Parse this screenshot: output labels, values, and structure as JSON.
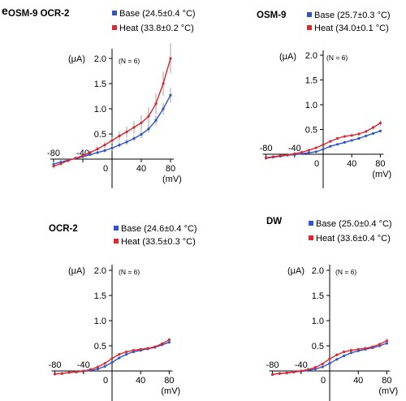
{
  "panel_letter": "e",
  "colors": {
    "base": "#2f55c8",
    "heat": "#d9282f",
    "error": "#8a8a8a"
  },
  "chart_data": [
    {
      "type": "line",
      "title": "OSM-9 OCR-2",
      "ylabel": "(μA)",
      "xlabel": "(mV)",
      "n_label": "(N = 6)",
      "xlim": [
        -80,
        80
      ],
      "ylim": [
        -0.15,
        2.0
      ],
      "x_ticks": [
        -80,
        -40,
        0,
        40,
        80
      ],
      "y_ticks": [
        0.5,
        1.0,
        1.5,
        2.0
      ],
      "y_tick_labels": [
        "0.5",
        "1.0",
        "1.5",
        "2.0"
      ],
      "x_tick_labels": [
        "-80",
        "-40",
        "0",
        "40",
        "80"
      ],
      "x": [
        -80,
        -70,
        -60,
        -50,
        -40,
        -30,
        -20,
        -10,
        0,
        10,
        20,
        30,
        40,
        50,
        60,
        70,
        80
      ],
      "series": [
        {
          "name": "Base (24.5±0.4 °C)",
          "color": "base",
          "values": [
            -0.1,
            -0.06,
            -0.02,
            0.01,
            0.05,
            0.09,
            0.13,
            0.17,
            0.22,
            0.28,
            0.34,
            0.41,
            0.49,
            0.6,
            0.77,
            1.0,
            1.27
          ],
          "errors": [
            0.04,
            0.04,
            0.03,
            0.03,
            0.03,
            0.03,
            0.03,
            0.04,
            0.05,
            0.05,
            0.06,
            0.06,
            0.07,
            0.08,
            0.1,
            0.12,
            0.15
          ]
        },
        {
          "name": "Heat (33.8±0.2 °C)",
          "color": "heat",
          "values": [
            -0.14,
            -0.09,
            -0.03,
            0.02,
            0.07,
            0.13,
            0.2,
            0.28,
            0.37,
            0.46,
            0.54,
            0.63,
            0.72,
            0.85,
            1.1,
            1.5,
            2.0
          ],
          "errors": [
            0.05,
            0.04,
            0.04,
            0.03,
            0.03,
            0.04,
            0.05,
            0.06,
            0.07,
            0.09,
            0.11,
            0.13,
            0.15,
            0.18,
            0.2,
            0.24,
            0.3
          ]
        }
      ]
    },
    {
      "type": "line",
      "title": "OSM-9",
      "ylabel": "(μA)",
      "xlabel": "(mV)",
      "n_label": "(N = 6)",
      "xlim": [
        -80,
        80
      ],
      "ylim": [
        -0.15,
        2.0
      ],
      "x_ticks": [
        -80,
        -40,
        0,
        40,
        80
      ],
      "y_ticks": [
        0.5,
        1.0,
        1.5,
        2.0
      ],
      "y_tick_labels": [
        "0.5",
        "1.0",
        "1.5",
        "2.0"
      ],
      "x_tick_labels": [
        "-80",
        "-40",
        "0",
        "40",
        "80"
      ],
      "x": [
        -80,
        -70,
        -60,
        -50,
        -40,
        -30,
        -20,
        -10,
        0,
        10,
        20,
        30,
        40,
        50,
        60,
        70,
        80
      ],
      "series": [
        {
          "name": "Base (25.7±0.3 °C)",
          "color": "base",
          "values": [
            -0.08,
            -0.06,
            -0.04,
            -0.02,
            -0.01,
            0.01,
            0.03,
            0.05,
            0.1,
            0.16,
            0.2,
            0.24,
            0.28,
            0.32,
            0.37,
            0.42,
            0.47
          ],
          "errors": [
            0.02,
            0.02,
            0.02,
            0.02,
            0.02,
            0.02,
            0.02,
            0.02,
            0.02,
            0.02,
            0.02,
            0.02,
            0.02,
            0.03,
            0.03,
            0.03,
            0.03
          ]
        },
        {
          "name": "Heat (34.0±0.1 °C)",
          "color": "heat",
          "values": [
            -0.07,
            -0.05,
            -0.03,
            -0.01,
            0.01,
            0.04,
            0.08,
            0.13,
            0.19,
            0.26,
            0.32,
            0.36,
            0.38,
            0.41,
            0.46,
            0.54,
            0.63
          ],
          "errors": [
            0.02,
            0.02,
            0.02,
            0.02,
            0.02,
            0.02,
            0.02,
            0.02,
            0.02,
            0.02,
            0.02,
            0.02,
            0.02,
            0.03,
            0.03,
            0.04,
            0.05
          ]
        }
      ]
    },
    {
      "type": "line",
      "title": "OCR-2",
      "ylabel": "(μA)",
      "xlabel": "(mV)",
      "n_label": "(N = 6)",
      "xlim": [
        -80,
        80
      ],
      "ylim": [
        -0.15,
        2.0
      ],
      "x_ticks": [
        -80,
        -40,
        0,
        40,
        80
      ],
      "y_ticks": [
        0.5,
        1.0,
        1.5,
        2.0
      ],
      "y_tick_labels": [
        "0.5",
        "1.0",
        "1.5",
        "2.0"
      ],
      "x_tick_labels": [
        "-80",
        "-40",
        "0",
        "40",
        "80"
      ],
      "x": [
        -80,
        -70,
        -60,
        -50,
        -40,
        -30,
        -20,
        -10,
        0,
        10,
        20,
        30,
        40,
        50,
        60,
        70,
        80
      ],
      "series": [
        {
          "name": "Base (24.6±0.4 °C)",
          "color": "base",
          "values": [
            -0.06,
            -0.05,
            -0.03,
            -0.02,
            -0.01,
            0.01,
            0.04,
            0.09,
            0.17,
            0.26,
            0.33,
            0.38,
            0.41,
            0.44,
            0.47,
            0.52,
            0.57
          ],
          "errors": [
            0.02,
            0.02,
            0.02,
            0.02,
            0.02,
            0.02,
            0.02,
            0.02,
            0.02,
            0.02,
            0.02,
            0.02,
            0.02,
            0.02,
            0.02,
            0.03,
            0.03
          ]
        },
        {
          "name": "Heat (33.5±0.3 °C)",
          "color": "heat",
          "values": [
            -0.06,
            -0.05,
            -0.03,
            -0.02,
            0.0,
            0.03,
            0.08,
            0.15,
            0.25,
            0.33,
            0.38,
            0.41,
            0.43,
            0.45,
            0.48,
            0.54,
            0.62
          ],
          "errors": [
            0.02,
            0.02,
            0.02,
            0.02,
            0.02,
            0.02,
            0.02,
            0.02,
            0.03,
            0.03,
            0.03,
            0.03,
            0.02,
            0.02,
            0.03,
            0.03,
            0.04
          ]
        }
      ]
    },
    {
      "type": "line",
      "title": "DW",
      "ylabel": "(μA)",
      "xlabel": "(mV)",
      "n_label": "(N = 6)",
      "xlim": [
        -80,
        80
      ],
      "ylim": [
        -0.15,
        2.0
      ],
      "x_ticks": [
        -80,
        -40,
        0,
        40,
        80
      ],
      "y_ticks": [
        0.5,
        1.0,
        1.5,
        2.0
      ],
      "y_tick_labels": [
        "0.5",
        "1.0",
        "1.5",
        "2.0"
      ],
      "x_tick_labels": [
        "-80",
        "-40",
        "0",
        "40",
        "80"
      ],
      "x": [
        -80,
        -70,
        -60,
        -50,
        -40,
        -30,
        -20,
        -10,
        0,
        10,
        20,
        30,
        40,
        50,
        60,
        70,
        80
      ],
      "series": [
        {
          "name": "Base (25.0±0.4 °C)",
          "color": "base",
          "values": [
            -0.07,
            -0.05,
            -0.04,
            -0.02,
            -0.01,
            0.01,
            0.04,
            0.08,
            0.15,
            0.23,
            0.3,
            0.36,
            0.4,
            0.43,
            0.46,
            0.5,
            0.55
          ],
          "errors": [
            0.02,
            0.02,
            0.02,
            0.02,
            0.02,
            0.02,
            0.02,
            0.02,
            0.02,
            0.02,
            0.02,
            0.02,
            0.02,
            0.02,
            0.02,
            0.03,
            0.03
          ]
        },
        {
          "name": "Heat (33.6±0.4 °C)",
          "color": "heat",
          "values": [
            -0.07,
            -0.05,
            -0.04,
            -0.02,
            0.0,
            0.03,
            0.07,
            0.14,
            0.24,
            0.32,
            0.38,
            0.41,
            0.43,
            0.45,
            0.48,
            0.53,
            0.6
          ],
          "errors": [
            0.02,
            0.02,
            0.02,
            0.02,
            0.02,
            0.02,
            0.02,
            0.02,
            0.03,
            0.03,
            0.03,
            0.03,
            0.02,
            0.02,
            0.03,
            0.03,
            0.04
          ]
        }
      ]
    }
  ]
}
